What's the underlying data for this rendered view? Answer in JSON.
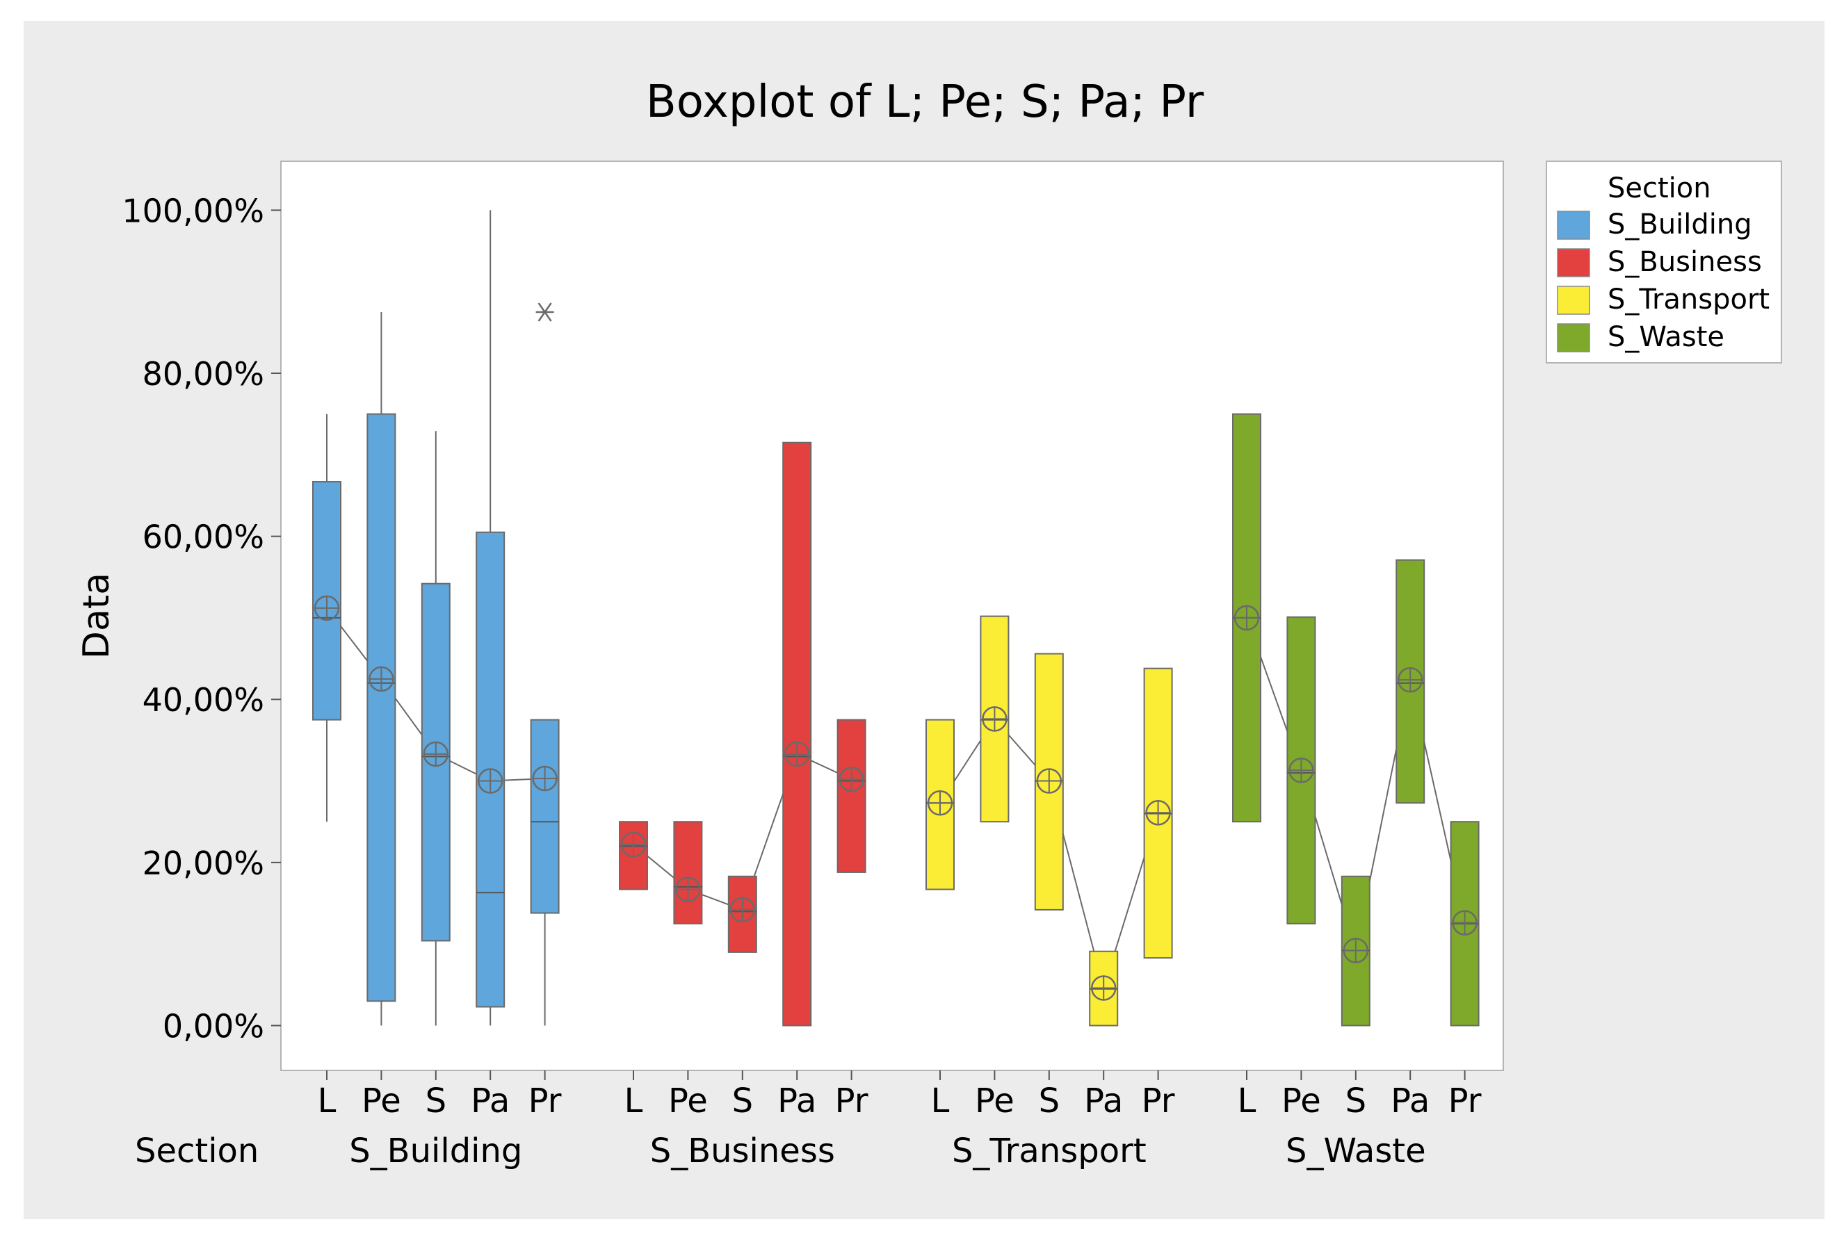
{
  "chart_data": {
    "type": "boxplot",
    "title": "Boxplot of L; Pe; S; Pa; Pr",
    "ylabel": "Data",
    "xlabel_row_title": "Section",
    "ylim": [
      -5.5,
      106
    ],
    "yticks": [
      0,
      20,
      40,
      60,
      80,
      100
    ],
    "ytick_labels": [
      "0,00%",
      "20,00%",
      "40,00%",
      "60,00%",
      "80,00%",
      "100,00%"
    ],
    "variables": [
      "L",
      "Pe",
      "S",
      "Pa",
      "Pr"
    ],
    "legend": {
      "title": "Section",
      "position": "right",
      "entries": [
        "S_Building",
        "S_Business",
        "S_Transport",
        "S_Waste"
      ]
    },
    "groups": [
      {
        "name": "S_Building",
        "color": "#5ea6db",
        "boxes": [
          {
            "var": "L",
            "whisker_low": 25,
            "q1": 37.5,
            "median": 50,
            "q3": 66.7,
            "whisker_high": 75,
            "mean": 51.2
          },
          {
            "var": "Pe",
            "whisker_low": 0,
            "q1": 3,
            "median": 42,
            "q3": 75,
            "whisker_high": 87.5,
            "mean": 42.5
          },
          {
            "var": "S",
            "whisker_low": 0,
            "q1": 10.4,
            "median": 33,
            "q3": 54.2,
            "whisker_high": 72.9,
            "mean": 33.3
          },
          {
            "var": "Pa",
            "whisker_low": 0,
            "q1": 2.3,
            "median": 16.3,
            "q3": 60.5,
            "whisker_high": 100,
            "mean": 30
          },
          {
            "var": "Pr",
            "whisker_low": 0,
            "q1": 13.8,
            "median": 25,
            "q3": 37.5,
            "whisker_high": 37.5,
            "mean": 30.3,
            "outliers": [
              87.5
            ]
          }
        ]
      },
      {
        "name": "S_Business",
        "color": "#e34040",
        "boxes": [
          {
            "var": "L",
            "whisker_low": 16.7,
            "q1": 16.7,
            "median": 22,
            "q3": 25,
            "whisker_high": 25,
            "mean": 22.2
          },
          {
            "var": "Pe",
            "whisker_low": 12.5,
            "q1": 12.5,
            "median": 17,
            "q3": 25,
            "whisker_high": 25,
            "mean": 16.7
          },
          {
            "var": "S",
            "whisker_low": 9,
            "q1": 9,
            "median": 14,
            "q3": 18.3,
            "whisker_high": 18.3,
            "mean": 14.2
          },
          {
            "var": "Pa",
            "whisker_low": 0,
            "q1": 0,
            "median": 33,
            "q3": 71.5,
            "whisker_high": 71.5,
            "mean": 33.3
          },
          {
            "var": "Pr",
            "whisker_low": 18.8,
            "q1": 18.8,
            "median": 30,
            "q3": 37.5,
            "whisker_high": 37.5,
            "mean": 30.2
          }
        ]
      },
      {
        "name": "S_Transport",
        "color": "#fbec35",
        "boxes": [
          {
            "var": "L",
            "whisker_low": 16.7,
            "q1": 16.7,
            "median": 27.3,
            "q3": 37.5,
            "whisker_high": 37.5,
            "mean": 27.3
          },
          {
            "var": "Pe",
            "whisker_low": 25,
            "q1": 25,
            "median": 37.5,
            "q3": 50.2,
            "whisker_high": 50.2,
            "mean": 37.6
          },
          {
            "var": "S",
            "whisker_low": 14.2,
            "q1": 14.2,
            "median": 30,
            "q3": 45.6,
            "whisker_high": 45.6,
            "mean": 30
          },
          {
            "var": "Pa",
            "whisker_low": 0,
            "q1": 0,
            "median": 4.5,
            "q3": 9.1,
            "whisker_high": 9.1,
            "mean": 4.6
          },
          {
            "var": "Pr",
            "whisker_low": 8.3,
            "q1": 8.3,
            "median": 26,
            "q3": 43.8,
            "whisker_high": 43.8,
            "mean": 26.1
          }
        ]
      },
      {
        "name": "S_Waste",
        "color": "#7ea92a",
        "boxes": [
          {
            "var": "L",
            "whisker_low": 25,
            "q1": 25,
            "median": 50,
            "q3": 75,
            "whisker_high": 75,
            "mean": 50
          },
          {
            "var": "Pe",
            "whisker_low": 12.5,
            "q1": 12.5,
            "median": 31,
            "q3": 50.1,
            "whisker_high": 50.1,
            "mean": 31.3
          },
          {
            "var": "S",
            "whisker_low": 0,
            "q1": 0,
            "median": 9.2,
            "q3": 18.3,
            "whisker_high": 18.3,
            "mean": 9.2
          },
          {
            "var": "Pa",
            "whisker_low": 27.3,
            "q1": 27.3,
            "median": 42,
            "q3": 57.1,
            "whisker_high": 57.1,
            "mean": 42.4
          },
          {
            "var": "Pr",
            "whisker_low": 0,
            "q1": 0,
            "median": 12.5,
            "q3": 25,
            "whisker_high": 25,
            "mean": 12.6
          }
        ]
      }
    ]
  }
}
